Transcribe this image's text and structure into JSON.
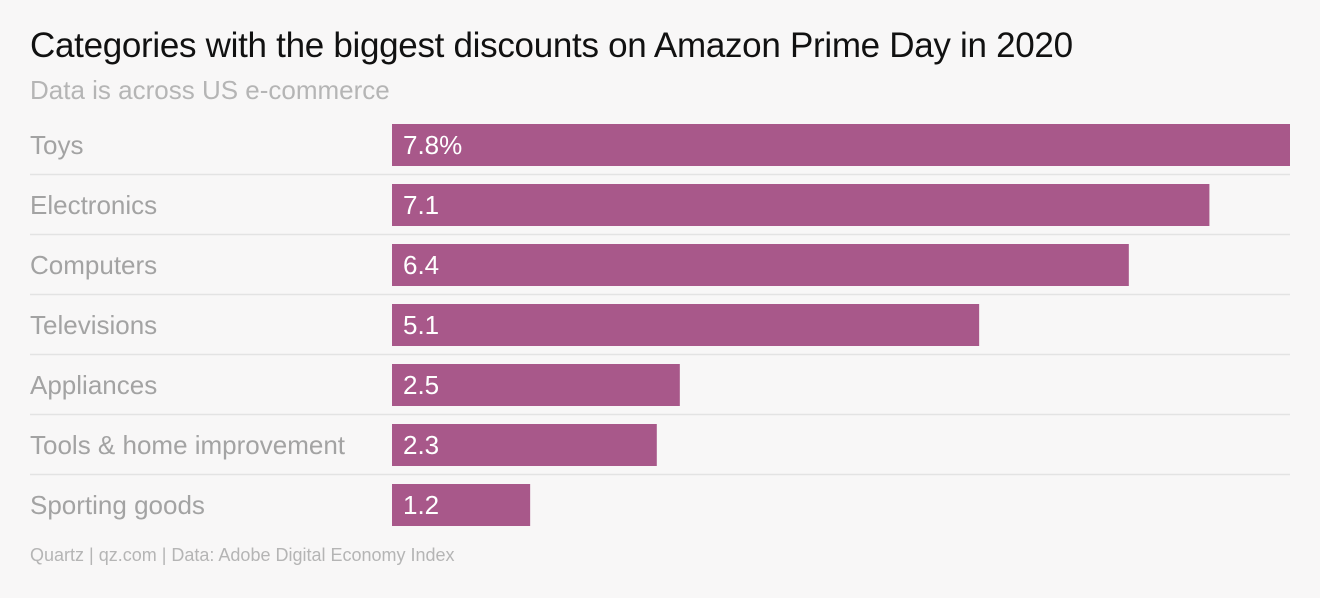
{
  "chart_data": {
    "type": "bar",
    "orientation": "horizontal",
    "title": "Categories with the biggest discounts on Amazon Prime Day in 2020",
    "subtitle": "Data is across US e-commerce",
    "categories": [
      "Toys",
      "Electronics",
      "Computers",
      "Televisions",
      "Appliances",
      "Tools & home improvement",
      "Sporting goods"
    ],
    "values": [
      7.8,
      7.1,
      6.4,
      5.1,
      2.5,
      2.3,
      1.2
    ],
    "value_labels": [
      "7.8%",
      "7.1",
      "6.4",
      "5.1",
      "2.5",
      "2.3",
      "1.2"
    ],
    "xlim": [
      0,
      7.8
    ],
    "grid": false,
    "bar_color": "#a8588a",
    "source": "Quartz | qz.com | Data: Adobe Digital Economy Index"
  }
}
